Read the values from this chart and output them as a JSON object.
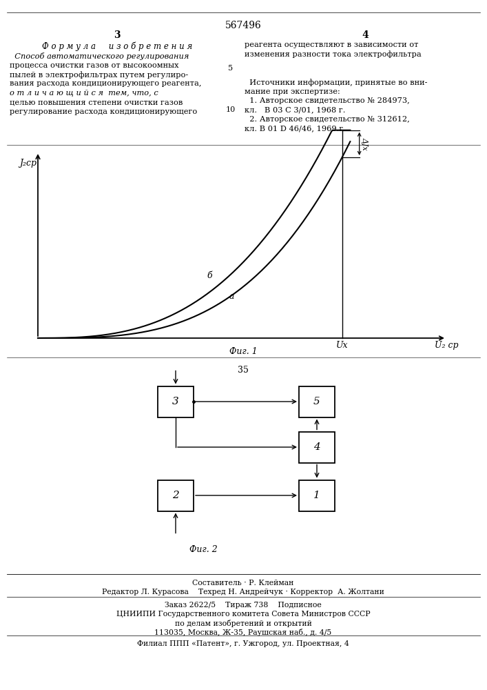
{
  "title": "567496",
  "page_number_left": "3",
  "page_number_right": "4",
  "formula_header": "Ф о р м у л а     и з о б р е т е н и я",
  "right_text_top_1": "реагента осуществляют в зависимости от",
  "right_text_top_2": "изменения разности тока электрофильтра",
  "fig1_caption": "Фиг. 1",
  "fig2_caption": "Фиг. 2",
  "fig2_number": "35",
  "line_number_5": "5",
  "line_number_10": "10",
  "ylabel_fig1": "J₂ср",
  "xlabel_ux": "Uх",
  "xlabel_u2sr": "U₂ ср",
  "label_a": "а",
  "label_b": "б",
  "label_delta": "ΔJх",
  "footer_line1": "Составитель · Р. Клейман",
  "footer_line2": "Редактор Л. Курасова    Техред Н. Андрейчук · Корректор  А. Жолтани",
  "footer_line3": "Заказ 2622/5    Тираж 738    Подписное",
  "footer_line4": "ЦНИИПИ Государственного комитета Совета Министров СССР",
  "footer_line5": "по делам изобретений и открытий",
  "footer_line6": "113035, Москва, Ж-35, Раушская наб., д. 4/5",
  "footer_line7": "Филиал ППП «Патент», г. Ужгород, ул. Проектная, 4"
}
